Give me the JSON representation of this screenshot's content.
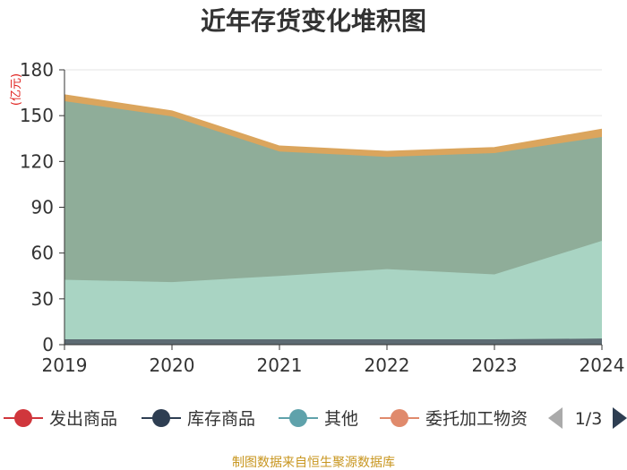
{
  "title": "近年存货变化堆积图",
  "unit_label": "(亿元)",
  "source": "制图数据来自恒生聚源数据库",
  "legend": {
    "items": [
      {
        "label": "发出商品",
        "color": "#d0363c"
      },
      {
        "label": "库存商品",
        "color": "#2e3e52"
      },
      {
        "label": "其他",
        "color": "#5fa2ab"
      },
      {
        "label": "委托加工物资",
        "color": "#e08a6c"
      }
    ],
    "page_text": "1/3"
  },
  "chart_data": {
    "type": "area",
    "stacked": true,
    "title": "近年存货变化堆积图",
    "ylabel": "(亿元)",
    "x": [
      "2019",
      "2020",
      "2021",
      "2022",
      "2023",
      "2024"
    ],
    "ylim": [
      0,
      180
    ],
    "yticks": [
      0,
      30,
      60,
      90,
      120,
      150,
      180
    ],
    "grid": true,
    "legend_position": "bottom",
    "series": [
      {
        "name": "库存商品",
        "color": "#5d6b73",
        "values": [
          3.5,
          3.5,
          3.5,
          3.5,
          3.5,
          4
        ]
      },
      {
        "name": "其他",
        "color": "#a9d4c3",
        "values": [
          39,
          37.5,
          41.5,
          46,
          42.5,
          64
        ]
      },
      {
        "name": "",
        "color": "#8fad99",
        "values": [
          117,
          108.5,
          81.5,
          73.5,
          79.5,
          68
        ]
      },
      {
        "name": "",
        "color": "#dba55d",
        "values": [
          4,
          3.5,
          3.5,
          3.5,
          3.5,
          5
        ]
      }
    ]
  }
}
